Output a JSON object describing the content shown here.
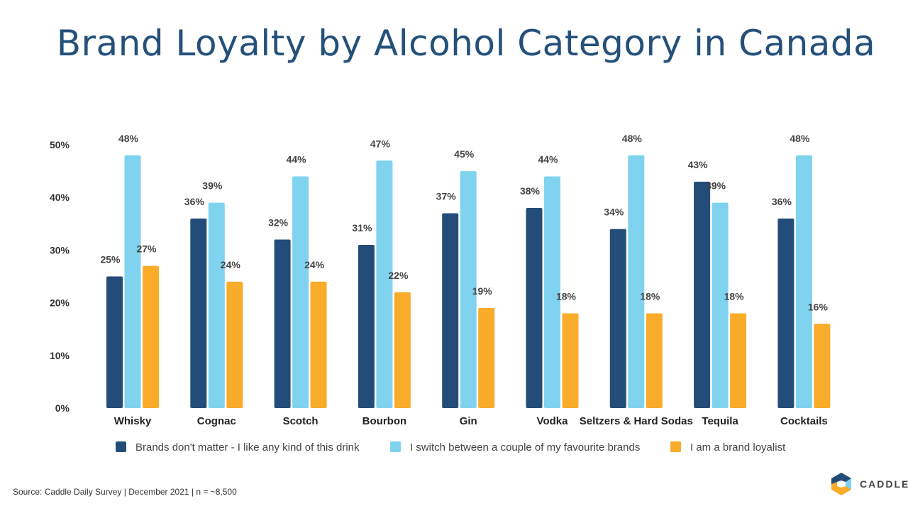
{
  "chart_data": {
    "type": "bar",
    "title": "Brand Loyalty by Alcohol Category in Canada",
    "categories": [
      "Whisky",
      "Cognac",
      "Scotch",
      "Bourbon",
      "Gin",
      "Vodka",
      "Seltzers & Hard Sodas",
      "Tequila",
      "Cocktails"
    ],
    "series": [
      {
        "name": "Brands don't matter - I like any kind of this drink",
        "color": "#234d78",
        "values": [
          25,
          36,
          32,
          31,
          37,
          38,
          34,
          43,
          36
        ]
      },
      {
        "name": "I switch between a couple of my favourite brands",
        "color": "#7fd3ef",
        "values": [
          48,
          39,
          44,
          47,
          45,
          44,
          48,
          39,
          48
        ]
      },
      {
        "name": "I am a brand loyalist",
        "color": "#f9ab2a",
        "values": [
          27,
          24,
          24,
          22,
          19,
          18,
          18,
          18,
          16
        ]
      }
    ],
    "yticks": [
      "0%",
      "10%",
      "20%",
      "30%",
      "40%",
      "50%"
    ],
    "ylim": [
      0,
      50
    ],
    "unit": "%",
    "legend": "bottom",
    "grid": false
  },
  "footer": {
    "source": "Source: Caddle Daily Survey | December 2021 | n = ~8,500",
    "logo_text": "CADDLE"
  }
}
